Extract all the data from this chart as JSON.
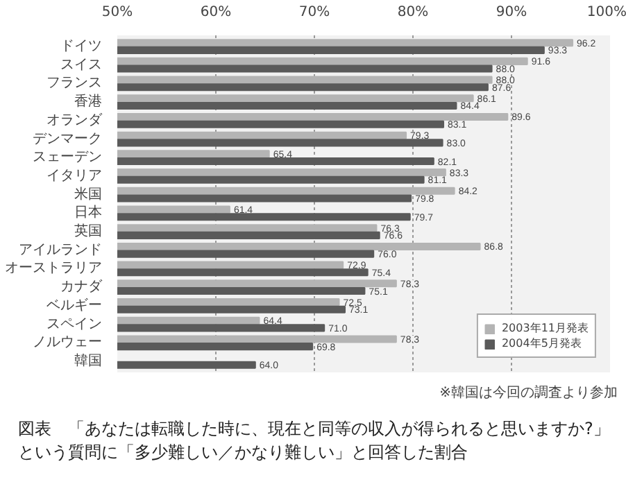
{
  "chart_data": {
    "type": "bar",
    "orientation": "horizontal",
    "categories": [
      "ドイツ",
      "スイス",
      "フランス",
      "香港",
      "オランダ",
      "デンマーク",
      "スェーデン",
      "イタリア",
      "米国",
      "日本",
      "英国",
      "アイルランド",
      "オーストラリア",
      "カナダ",
      "ベルギー",
      "スペイン",
      "ノルウェー",
      "韓国"
    ],
    "series": [
      {
        "name": "2003年11月発表",
        "color": "#b4b4b4",
        "values": [
          96.2,
          91.6,
          88.0,
          86.1,
          89.6,
          79.3,
          65.4,
          83.3,
          84.2,
          61.4,
          76.3,
          86.8,
          72.9,
          78.3,
          72.5,
          64.4,
          78.3,
          null
        ],
        "value_labels": [
          "96.2",
          "91.6",
          "88.0",
          "86.1",
          "89.6",
          "79.3",
          "65.4",
          "83.3",
          "84.2",
          "61.4",
          "76.3",
          "86.8",
          "72.9",
          "78.3",
          "72.5",
          "64.4",
          "78.3",
          null
        ]
      },
      {
        "name": "2004年5月発表",
        "color": "#5a5a5a",
        "values": [
          93.3,
          88.0,
          87.6,
          84.4,
          83.1,
          83.0,
          82.1,
          81.1,
          79.8,
          79.7,
          76.6,
          76.0,
          75.4,
          75.1,
          73.1,
          71.0,
          69.8,
          64.0
        ],
        "value_labels": [
          "93.3",
          "88.0",
          "87.6",
          "84.4",
          "83.1",
          "83.0",
          "82.1",
          "81.1",
          "79.8",
          "79.7",
          "76.6",
          "76.0",
          "75.4",
          "75.1",
          "73.1",
          "71.0",
          "69.8",
          "64.0"
        ]
      }
    ],
    "xlim": [
      50,
      100
    ],
    "xticks": [
      {
        "value": 50,
        "label": "50%"
      },
      {
        "value": 60,
        "label": "60%"
      },
      {
        "value": 70,
        "label": "70%"
      },
      {
        "value": 80,
        "label": "80%"
      },
      {
        "value": 90,
        "label": "90%"
      },
      {
        "value": 100,
        "label": "100%"
      }
    ],
    "grid": "x",
    "legend": "bottom right",
    "annotations": [
      "※韓国は今回の調査より参加",
      "図表　「あなたは転職した時に、現在と同等の収入が得られると思いますか?」という質問に「多少難しい／かなり難しい」と回答した割合"
    ]
  }
}
